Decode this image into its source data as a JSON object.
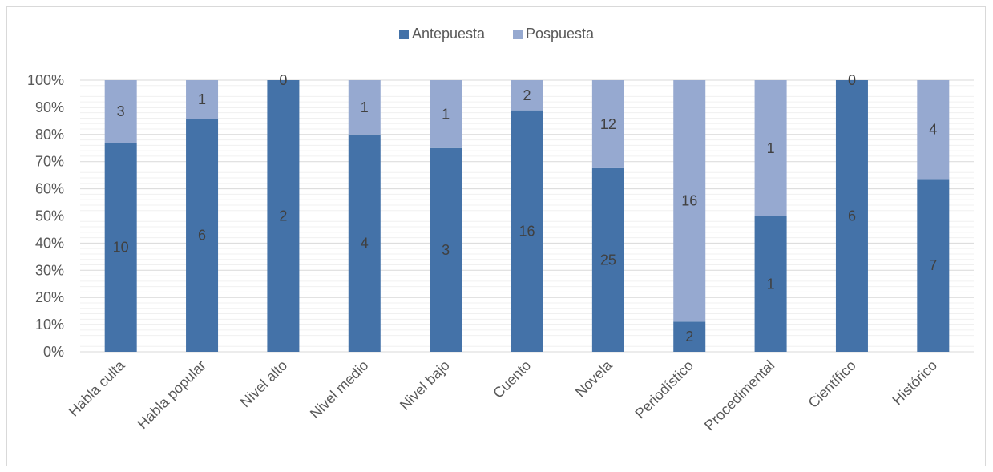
{
  "chart_data": {
    "type": "bar",
    "stacked": true,
    "percent_stacked": true,
    "categories": [
      "Habla culta",
      "Habla popular",
      "Nivel alto",
      "Nivel medio",
      "Nivel bajo",
      "Cuento",
      "Novela",
      "Periodístico",
      "Procedimental",
      "Científico",
      "Histórico"
    ],
    "series": [
      {
        "name": "Antepuesta",
        "values": [
          10,
          6,
          2,
          4,
          3,
          16,
          25,
          2,
          1,
          6,
          7
        ],
        "color": "#4472a8"
      },
      {
        "name": "Pospuesta",
        "values": [
          3,
          1,
          0,
          1,
          1,
          2,
          12,
          16,
          1,
          0,
          4
        ],
        "color": "#96a9d0"
      }
    ],
    "title": "",
    "xlabel": "",
    "ylabel": "",
    "ylim": [
      0,
      100
    ],
    "yticks": [
      "0%",
      "10%",
      "20%",
      "30%",
      "40%",
      "50%",
      "60%",
      "70%",
      "80%",
      "90%",
      "100%"
    ],
    "grid": true,
    "minor_grid": true,
    "legend": "top-center",
    "data_labels": true
  }
}
